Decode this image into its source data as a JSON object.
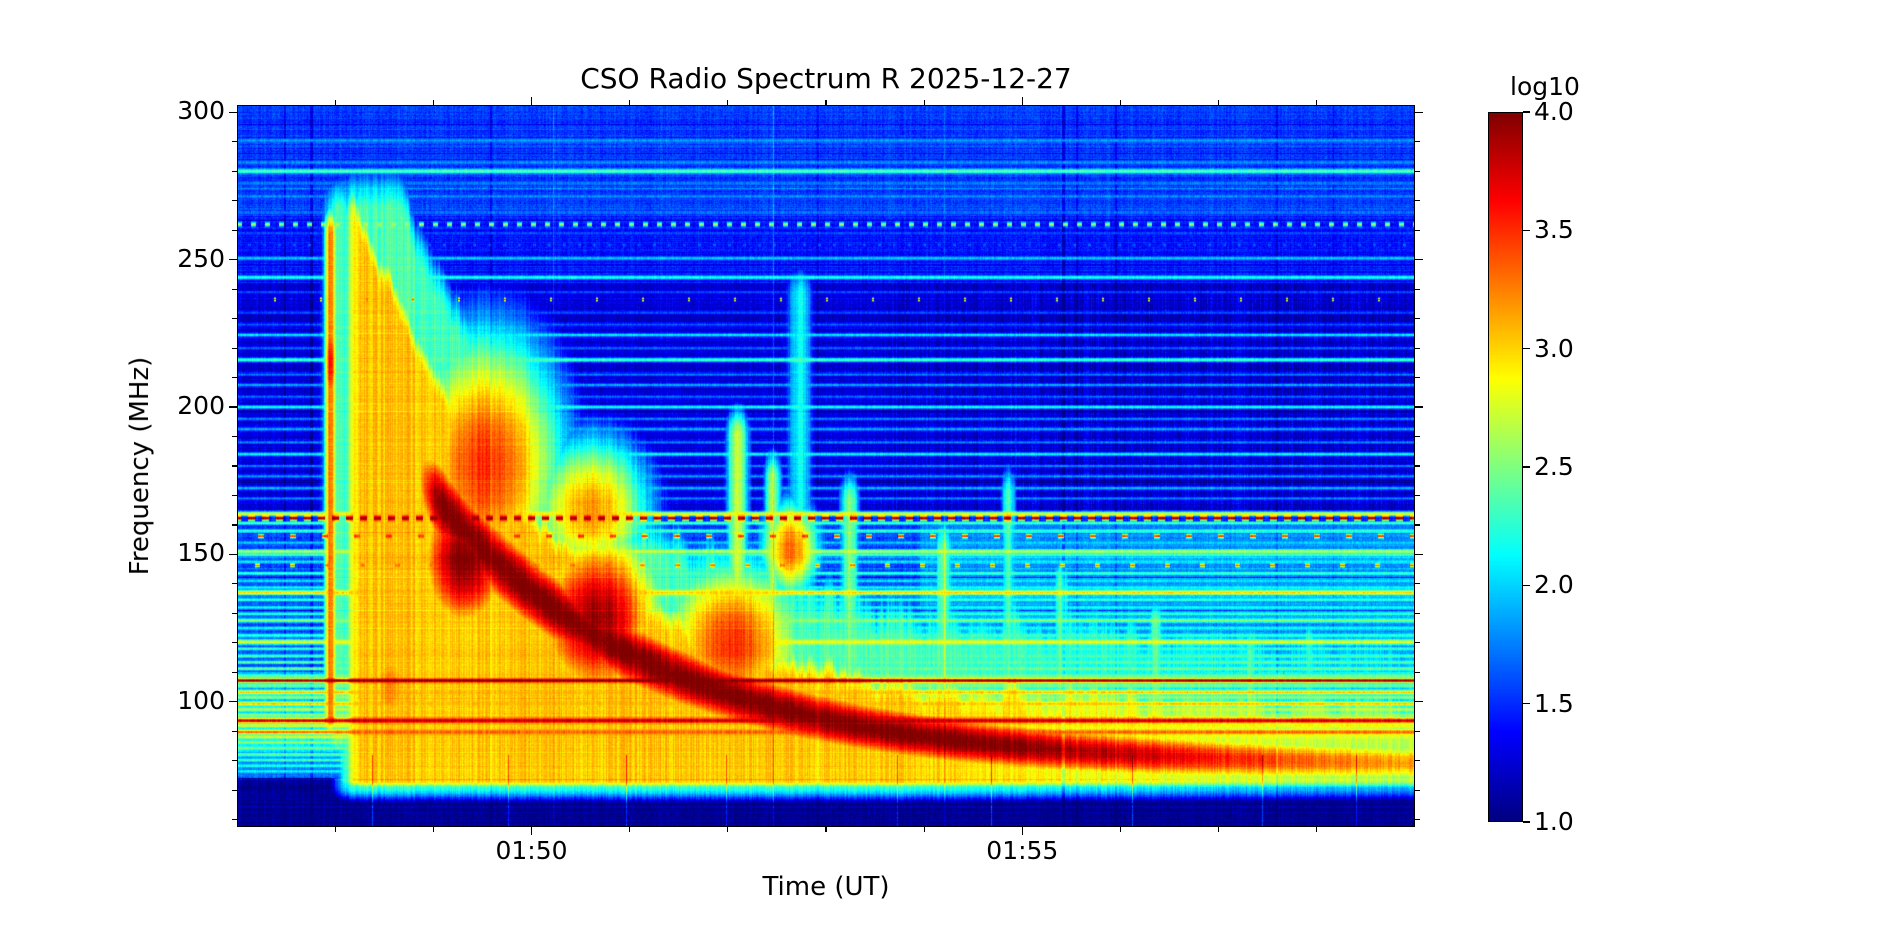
{
  "figure": {
    "title": "CSO Radio Spectrum R 2025-12-27",
    "xlabel": "Time (UT)",
    "ylabel": "Frequency (MHz)",
    "background": "#ffffff"
  },
  "chart_data": {
    "type": "heatmap",
    "title": "CSO Radio Spectrum R 2025-12-27",
    "xlabel": "Time (UT)",
    "ylabel": "Frequency (MHz)",
    "x_tick_labels": [
      "01:50",
      "01:55"
    ],
    "x_tick_minutes": [
      50,
      55
    ],
    "x_minor_tick_minutes": [
      48,
      49,
      51,
      52,
      53,
      54,
      56,
      57,
      58
    ],
    "x_range_minutes": [
      47,
      59
    ],
    "x_range_ut": [
      "01:47",
      "01:59"
    ],
    "y_tick_values": [
      300,
      250,
      200,
      150,
      100
    ],
    "y_minor_step": 10,
    "y_range_mhz": [
      57.5,
      302.5
    ],
    "grid": false,
    "colorbar": {
      "label": "log10",
      "tick_values": [
        "4.0",
        "3.5",
        "3.0",
        "2.5",
        "2.0",
        "1.5",
        "1.0"
      ],
      "vmin": 1.0,
      "vmax": 4.0,
      "colormap": "jet",
      "position": "right"
    },
    "content_description": "Solar radio burst dynamic spectrum: narrow onset spike near 01:47.9 UT reaching ~260 MHz, intense broadband emission 01:48.5-01:53 UT between ~80 and ~220 MHz with a dark-red core, and a slowly drifting bright ridge descending from ~150 MHz near 01:50 UT to ~85 MHz after 01:55 UT, over a blue background crossed by many horizontal RFI channels.",
    "render_model": {
      "background_bands": [
        [
          265,
          302.6,
          1.56
        ],
        [
          242,
          265,
          1.44
        ],
        [
          165,
          242,
          1.27
        ],
        [
          157,
          165,
          1.46
        ],
        [
          110,
          157,
          1.6
        ],
        [
          96,
          110,
          1.92
        ],
        [
          82,
          96,
          2.02
        ],
        [
          74,
          82,
          1.75
        ],
        [
          57.4,
          74,
          1.06
        ]
      ],
      "enhancements": {
        "right_cyan": {
          "t_min": 0.58,
          "f_min": 108,
          "f_max": 160,
          "dv": 0.22
        },
        "right_dark": {
          "t_min": 0.55,
          "f_min": 165,
          "f_max": 242
        }
      },
      "noise": {
        "seed": 1337,
        "row": 0.09,
        "row_strong": 0.3,
        "col": 0.12,
        "pix": 0.1,
        "fiber": 0.22
      },
      "bursts": {
        "spike": {
          "t": 0.0795,
          "sigma": 0.0055,
          "f_lo": 95,
          "f_hi": 258,
          "v": 3.35,
          "core": {
            "fc": 215,
            "sf": 20,
            "v": 3.7
          },
          "halo": {
            "t": 0.086,
            "sigma": 0.015,
            "f_lo": 88,
            "f_hi": 266,
            "v": 2.35
          }
        },
        "blobs": [
          [
            0.21,
            0.065,
            180,
            45,
            3.5
          ],
          [
            0.193,
            0.042,
            148,
            26,
            4.05
          ],
          [
            0.305,
            0.055,
            128,
            30,
            3.95
          ],
          [
            0.3,
            0.05,
            165,
            25,
            3.2
          ],
          [
            0.42,
            0.06,
            120,
            28,
            3.5
          ],
          [
            0.47,
            0.025,
            152,
            16,
            3.3
          ],
          [
            0.13,
            0.03,
            105,
            25,
            3.2
          ]
        ],
        "ridge": {
          "f_base": 78,
          "f_amp": 170,
          "t0": 0.05,
          "tau": 0.19,
          "sg_base": 7,
          "sg_amp": 13,
          "sg_tau": 0.3,
          "v": 4.05,
          "rise": [
            0.115,
            0.175
          ],
          "fade": [
            0.6,
            1.05
          ],
          "fade_amt": 0.22
        },
        "envelope": {
          "f_base": 90,
          "f_amp": 255,
          "t0": 0.04,
          "tau": 0.16,
          "f_cap": 262,
          "f_floor": 73.5,
          "v": 3.05,
          "rise": [
            0.065,
            0.105
          ],
          "fade": [
            0.5,
            0.98
          ],
          "fade_amt": 0.12,
          "edge_lo": 3.2,
          "edge_hi": 13
        },
        "halo": {
          "v": 2.35,
          "rise": [
            0.06,
            0.1
          ],
          "fade": [
            0.5,
            1.0
          ],
          "fade_amt": 0.15,
          "up1": 22,
          "up2": 40,
          "tau2": 0.09,
          "f_cap": 265,
          "edge_lo": 5,
          "edge_hi": 16
        },
        "plumes": [
          [
            0.425,
            0.01,
            190,
            2.7
          ],
          [
            0.455,
            0.008,
            175,
            2.6
          ],
          [
            0.478,
            0.012,
            238,
            2.15
          ],
          [
            0.52,
            0.009,
            168,
            2.5
          ],
          [
            0.6,
            0.008,
            152,
            2.5
          ],
          [
            0.655,
            0.007,
            170,
            2.3
          ],
          [
            0.7,
            0.008,
            140,
            2.4
          ],
          [
            0.78,
            0.008,
            126,
            2.35
          ],
          [
            0.86,
            0.008,
            116,
            2.3
          ],
          [
            0.91,
            0.006,
            120,
            2.2
          ]
        ]
      },
      "rfi_lines": [
        [
          290.5,
          1.85,
          0.4,
          0,
          0,
          0
        ],
        [
          283,
          1.8,
          0.4,
          0,
          0,
          0
        ],
        [
          280,
          2.45,
          0.5,
          0,
          0,
          0
        ],
        [
          276,
          1.75,
          0.4,
          0,
          0,
          0
        ],
        [
          271.5,
          1.8,
          0.4,
          0,
          0,
          0
        ],
        [
          266,
          1.7,
          0.4,
          0,
          0,
          0
        ],
        [
          262,
          2.6,
          0.5,
          5,
          9,
          0
        ],
        [
          259,
          1.6,
          0.35,
          0,
          0,
          0
        ],
        [
          255,
          1.65,
          0.35,
          3,
          12,
          4
        ],
        [
          250.5,
          2.0,
          0.4,
          0,
          0,
          0
        ],
        [
          244,
          2.25,
          0.45,
          0,
          0,
          0
        ],
        [
          239,
          1.6,
          0.35,
          0,
          0,
          0
        ],
        [
          236.5,
          3.4,
          0.4,
          2,
          44,
          9
        ],
        [
          232,
          1.6,
          0.35,
          0,
          0,
          0
        ],
        [
          228,
          1.65,
          0.35,
          0,
          0,
          0
        ],
        [
          224.5,
          2.1,
          0.45,
          0,
          0,
          0
        ],
        [
          220,
          1.7,
          0.35,
          0,
          0,
          0
        ],
        [
          216,
          2.35,
          0.5,
          0,
          0,
          0
        ],
        [
          211,
          1.75,
          0.35,
          0,
          0,
          0
        ],
        [
          207.5,
          1.9,
          0.4,
          0,
          0,
          0
        ],
        [
          203.5,
          1.7,
          0.35,
          0,
          0,
          0
        ],
        [
          200,
          2.2,
          0.45,
          0,
          0,
          0
        ],
        [
          196,
          1.8,
          0.35,
          0,
          0,
          0
        ],
        [
          192.5,
          1.9,
          0.4,
          0,
          0,
          0
        ],
        [
          188,
          1.78,
          0.35,
          0,
          0,
          0
        ],
        [
          184,
          2.15,
          0.45,
          0,
          0,
          0
        ],
        [
          180,
          1.8,
          0.35,
          0,
          0,
          0
        ],
        [
          176.5,
          1.85,
          0.35,
          0,
          0,
          0
        ],
        [
          172.5,
          1.95,
          0.4,
          0,
          0,
          0
        ],
        [
          169,
          1.8,
          0.35,
          0,
          0,
          0
        ],
        [
          163.8,
          2.9,
          0.5,
          0,
          0,
          0
        ],
        [
          162.3,
          3.95,
          0.6,
          7,
          7,
          3
        ],
        [
          160.6,
          2.4,
          0.4,
          0,
          0,
          0
        ],
        [
          158,
          2.3,
          0.4,
          0,
          0,
          0
        ],
        [
          156.2,
          3.5,
          0.45,
          6,
          26,
          11
        ],
        [
          154,
          2.0,
          0.35,
          0,
          0,
          0
        ],
        [
          151,
          2.75,
          0.45,
          0,
          0,
          0
        ],
        [
          149.9,
          2.35,
          0.4,
          0,
          0,
          0
        ],
        [
          147.5,
          2.1,
          0.35,
          0,
          0,
          0
        ],
        [
          146.3,
          3.3,
          0.4,
          5,
          30,
          17
        ],
        [
          143.6,
          2.35,
          0.4,
          0,
          0,
          0
        ],
        [
          141,
          2.1,
          0.35,
          0,
          0,
          0
        ],
        [
          138.8,
          2.2,
          0.35,
          0,
          0,
          0
        ],
        [
          137,
          3.0,
          0.6,
          0,
          0,
          0
        ],
        [
          134.6,
          2.3,
          0.4,
          0,
          0,
          0
        ],
        [
          132,
          2.2,
          0.35,
          0,
          0,
          0
        ],
        [
          129.8,
          2.3,
          0.35,
          0,
          0,
          0
        ],
        [
          127.6,
          2.55,
          0.45,
          0,
          0,
          0
        ],
        [
          125,
          2.2,
          0.35,
          0,
          0,
          0
        ],
        [
          122.5,
          2.35,
          0.4,
          0,
          0,
          0
        ],
        [
          120.3,
          2.85,
          0.6,
          0,
          0,
          0
        ],
        [
          118,
          2.3,
          0.35,
          0,
          0,
          0
        ],
        [
          115.5,
          2.35,
          0.4,
          0,
          0,
          0
        ],
        [
          113.4,
          2.4,
          0.4,
          0,
          0,
          0
        ],
        [
          111.2,
          2.45,
          0.4,
          0,
          0,
          0
        ],
        [
          108.7,
          2.5,
          0.4,
          0,
          0,
          0
        ],
        [
          107.2,
          4.0,
          0.45,
          0,
          0,
          0
        ],
        [
          105.5,
          2.55,
          0.4,
          0,
          0,
          0
        ],
        [
          103.2,
          3.05,
          0.5,
          0,
          0,
          0
        ],
        [
          101.5,
          2.6,
          0.4,
          0,
          0,
          0
        ],
        [
          99.3,
          3.05,
          0.5,
          0,
          0,
          0
        ],
        [
          97.4,
          2.75,
          0.45,
          0,
          0,
          0
        ],
        [
          95.5,
          2.6,
          0.4,
          0,
          0,
          0
        ],
        [
          93.6,
          3.8,
          0.6,
          0,
          0,
          0
        ],
        [
          91.9,
          2.9,
          0.45,
          0,
          0,
          0
        ],
        [
          89.7,
          3.35,
          0.55,
          0,
          0,
          0
        ],
        [
          88,
          2.8,
          0.45,
          0,
          0,
          0
        ],
        [
          86.2,
          2.6,
          0.4,
          0,
          0,
          0
        ],
        [
          84.3,
          2.5,
          0.4,
          0,
          0,
          0
        ],
        [
          82,
          2.4,
          0.4,
          0,
          0,
          0
        ],
        [
          80.2,
          2.35,
          0.4,
          0,
          0,
          0
        ],
        [
          78.3,
          2.25,
          0.4,
          0,
          0,
          0
        ],
        [
          76.4,
          2.15,
          0.4,
          0,
          0,
          0
        ]
      ],
      "dark_columns": [
        [
          0.04,
          2,
          -0.2
        ],
        [
          0.062,
          3,
          -0.26
        ],
        [
          0.215,
          2,
          -0.2
        ],
        [
          0.492,
          2,
          -0.16
        ],
        [
          0.7,
          3,
          -0.24
        ],
        [
          0.712,
          2,
          -0.2
        ],
        [
          0.745,
          2,
          -0.22
        ],
        [
          0.882,
          2,
          -0.18
        ],
        [
          0.93,
          1,
          -0.15
        ]
      ],
      "bright_full_columns": [
        [
          0.268,
          1,
          0.22
        ],
        [
          0.455,
          1,
          0.28
        ],
        [
          0.6,
          1,
          0.2
        ]
      ],
      "bright_low_columns": [
        [
          0.115,
          1,
          0.5
        ],
        [
          0.23,
          1,
          0.45
        ],
        [
          0.33,
          1,
          0.5
        ],
        [
          0.415,
          1,
          0.4
        ],
        [
          0.56,
          1,
          0.45
        ],
        [
          0.64,
          1,
          0.5
        ],
        [
          0.76,
          1,
          0.45
        ],
        [
          0.87,
          1,
          0.5
        ],
        [
          0.95,
          1,
          0.4
        ]
      ]
    }
  }
}
